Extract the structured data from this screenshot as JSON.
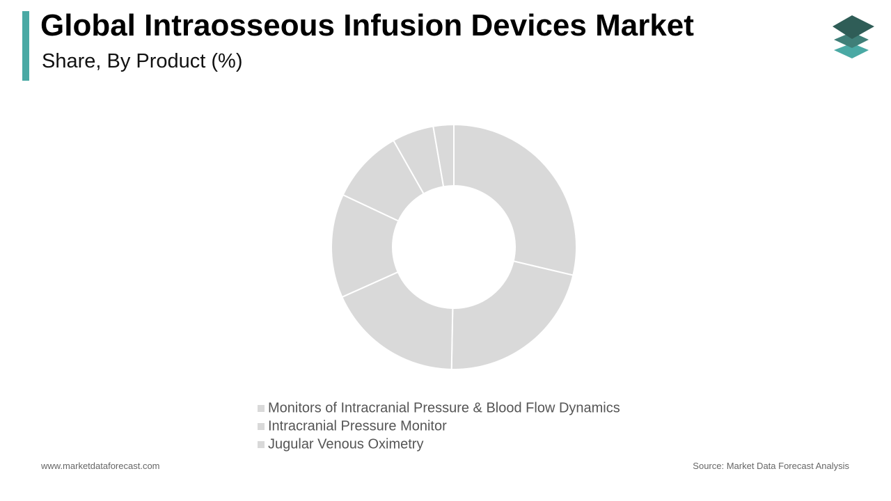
{
  "chart_data": {
    "type": "donut",
    "title": "Global Intraosseous Infusion Devices Market",
    "subtitle": "Share, By Product (%)",
    "categories": [
      "Monitors of Intracranial Pressure & Blood Flow Dynamics",
      "Intracranial Pressure Monitor",
      "Jugular Venous Oximetry",
      null,
      null,
      null,
      null
    ],
    "values": [
      28.7,
      21.6,
      18,
      13.7,
      9.8,
      5.5,
      2.7
    ],
    "color": "#d9d9d9"
  },
  "footer": {
    "website": "www.marketdataforecast.com",
    "source": "Source: Market Data Forecast Analysis"
  }
}
